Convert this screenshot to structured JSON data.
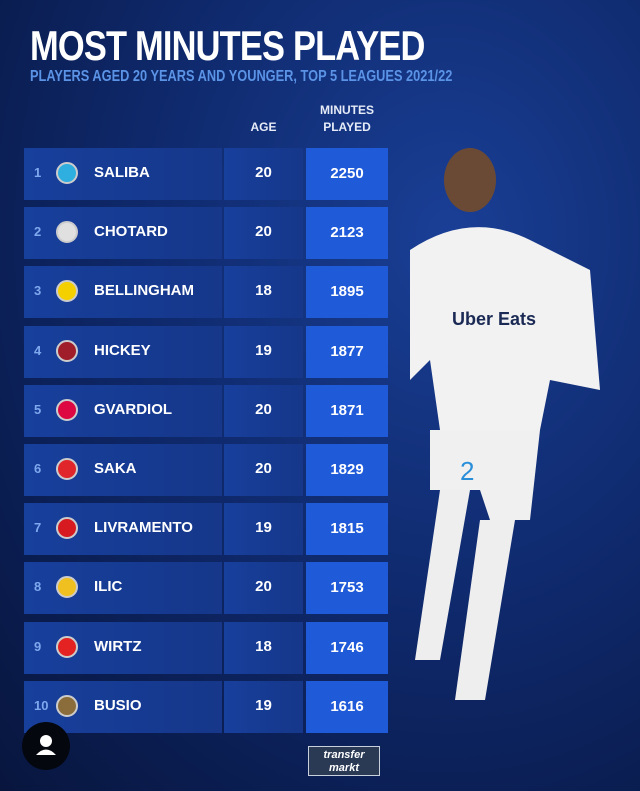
{
  "header": {
    "title": "MOST MINUTES PLAYED",
    "subtitle": "PLAYERS AGED 20 YEARS AND YOUNGER, TOP 5 LEAGUES 2021/22"
  },
  "columns": {
    "age": "AGE",
    "minutes_line1": "MINUTES",
    "minutes_line2": "PLAYED"
  },
  "chart_data": {
    "type": "table",
    "title": "MOST MINUTES PLAYED",
    "subtitle": "PLAYERS AGED 20 YEARS AND YOUNGER, TOP 5 LEAGUES 2021/22",
    "columns": [
      "AGE",
      "MINUTES PLAYED"
    ],
    "rows": [
      {
        "rank": "1",
        "name": "SALIBA",
        "age": "20",
        "minutes": "2250",
        "crest_color": "#2faee0"
      },
      {
        "rank": "2",
        "name": "CHOTARD",
        "age": "20",
        "minutes": "2123",
        "crest_color": "#e0e0e0"
      },
      {
        "rank": "3",
        "name": "BELLINGHAM",
        "age": "18",
        "minutes": "1895",
        "crest_color": "#f5d000"
      },
      {
        "rank": "4",
        "name": "HICKEY",
        "age": "19",
        "minutes": "1877",
        "crest_color": "#a01e2a"
      },
      {
        "rank": "5",
        "name": "GVARDIOL",
        "age": "20",
        "minutes": "1871",
        "crest_color": "#dd0741"
      },
      {
        "rank": "6",
        "name": "SAKA",
        "age": "20",
        "minutes": "1829",
        "crest_color": "#e0262b"
      },
      {
        "rank": "7",
        "name": "LIVRAMENTO",
        "age": "19",
        "minutes": "1815",
        "crest_color": "#d71920"
      },
      {
        "rank": "8",
        "name": "ILIC",
        "age": "20",
        "minutes": "1753",
        "crest_color": "#f0c020"
      },
      {
        "rank": "9",
        "name": "WIRTZ",
        "age": "18",
        "minutes": "1746",
        "crest_color": "#e32221"
      },
      {
        "rank": "10",
        "name": "BUSIO",
        "age": "19",
        "minutes": "1616",
        "crest_color": "#8a6d3b"
      }
    ]
  },
  "player_photo": {
    "shirt_text": "Uber Eats",
    "number": "2"
  },
  "footer": {
    "logo_line1": "transfer",
    "logo_line2": "markt"
  },
  "colors": {
    "background": "#0f2a6e",
    "minutes_box": "#1f5ad9",
    "subtitle": "#5b93e6"
  }
}
